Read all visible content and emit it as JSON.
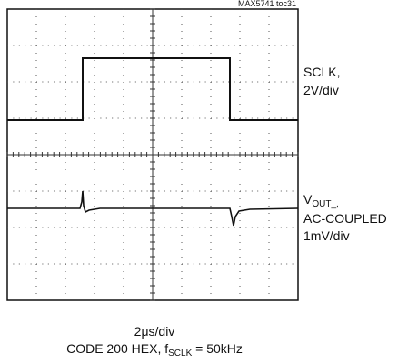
{
  "plot_label": "MAX5741 toc31",
  "traces": [
    {
      "name": "SCLK,",
      "scale": "2V/div"
    },
    {
      "name_main": "V",
      "name_sub": "OUT_,",
      "coupling": "AC-COUPLED",
      "scale": "1mV/div"
    }
  ],
  "x_scale": "2μs/div",
  "caption": {
    "pre": "CODE 200 HEX, f",
    "sub": "SCLK",
    "post": " = 50kHz"
  }
}
